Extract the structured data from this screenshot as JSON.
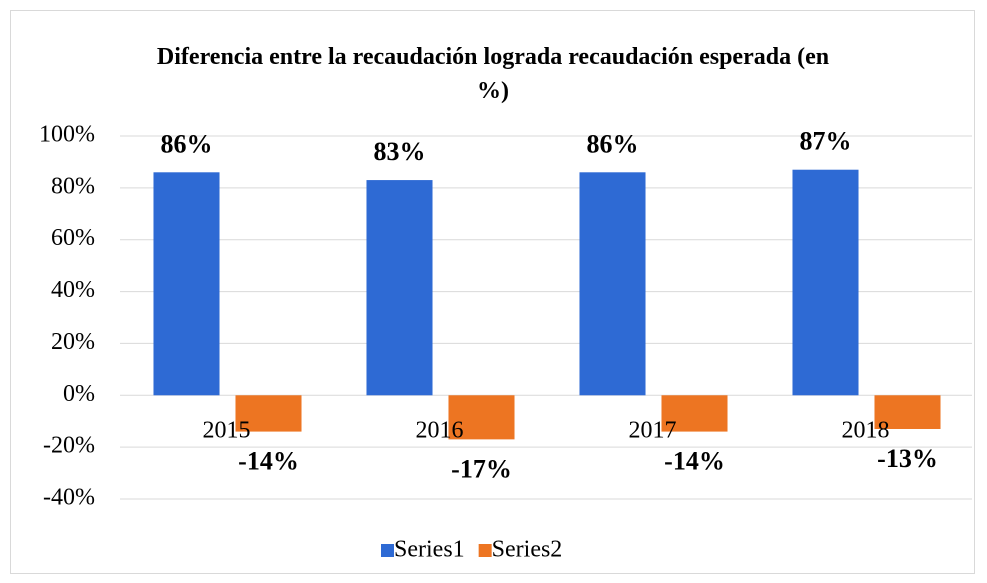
{
  "chart_data": {
    "type": "bar",
    "title": "Diferencia entre la recaudación lograda recaudación esperada (en %)",
    "categories": [
      "2015",
      "2016",
      "2017",
      "2018"
    ],
    "series": [
      {
        "name": "Series1",
        "color": "#2e6ad4",
        "values": [
          86,
          83,
          86,
          87
        ],
        "value_labels": [
          "86%",
          "83%",
          "86%",
          "87%"
        ]
      },
      {
        "name": "Series2",
        "color": "#ed7522",
        "values": [
          -14,
          -17,
          -14,
          -13
        ],
        "value_labels": [
          "-14%",
          "-17%",
          "-14%",
          "-13%"
        ]
      }
    ],
    "ylim": [
      -40,
      100
    ],
    "yticks": [
      {
        "value": -40,
        "label": "-40%"
      },
      {
        "value": -20,
        "label": "-20%"
      },
      {
        "value": 0,
        "label": "0%"
      },
      {
        "value": 20,
        "label": "20%"
      },
      {
        "value": 40,
        "label": "40%"
      },
      {
        "value": 60,
        "label": "60%"
      },
      {
        "value": 80,
        "label": "80%"
      },
      {
        "value": 100,
        "label": "100%"
      }
    ],
    "grid": true,
    "legend": "bottom"
  }
}
